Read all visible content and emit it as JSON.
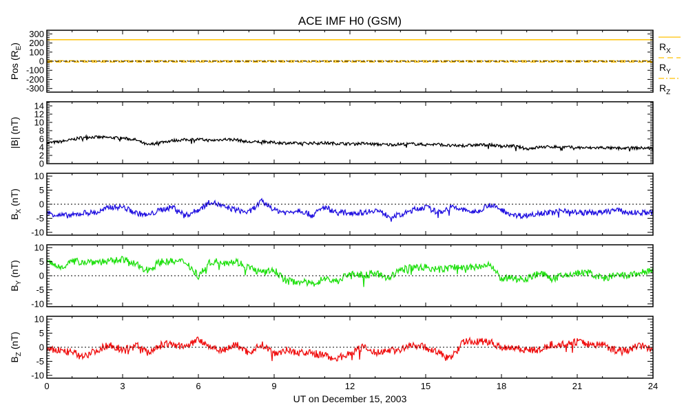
{
  "chart_data": {
    "type": "line",
    "title": "ACE IMF H0 (GSM)",
    "xlabel": "UT on December 15, 2003",
    "xlim": [
      0,
      24
    ],
    "xticks": [
      0,
      3,
      6,
      9,
      12,
      15,
      18,
      21,
      24
    ],
    "xtick_labels": [
      "0",
      "3",
      "6",
      "9",
      "12",
      "15",
      "18",
      "21",
      "24"
    ],
    "x": [
      0,
      0.5,
      1,
      1.5,
      2,
      2.5,
      3,
      3.5,
      4,
      4.5,
      5,
      5.5,
      6,
      6.5,
      7,
      7.5,
      8,
      8.5,
      9,
      9.5,
      10,
      10.5,
      11,
      11.5,
      12,
      12.5,
      13,
      13.5,
      14,
      14.5,
      15,
      15.5,
      16,
      16.5,
      17,
      17.5,
      18,
      18.5,
      19,
      19.5,
      20,
      20.5,
      21,
      21.5,
      22,
      22.5,
      23,
      23.5,
      24
    ],
    "panels": [
      {
        "ylabel": "Pos (R",
        "ylabel_sub": "E",
        "ylabel_end": ")",
        "ylim": [
          -340,
          340
        ],
        "yticks": [
          -300,
          -200,
          -100,
          0,
          100,
          200,
          300
        ],
        "ytick_labels": [
          "-300",
          "-200",
          "-100",
          "0",
          "100",
          "200",
          "300"
        ],
        "zero_line": true,
        "legend": [
          {
            "label": "R",
            "sub": "X",
            "style": "solid"
          },
          {
            "label": "R",
            "sub": "Y",
            "style": "dashed"
          },
          {
            "label": "R",
            "sub": "Z",
            "style": "dashdot"
          }
        ],
        "series": [
          {
            "name": "Rx",
            "color": "#ffc000",
            "style": "solid",
            "constant": 236
          },
          {
            "name": "Ry",
            "color": "#ffc000",
            "style": "dashed",
            "constant": -10
          },
          {
            "name": "Rz",
            "color": "#ffc000",
            "style": "dashdot",
            "constant": 5
          }
        ]
      },
      {
        "ylabel": "|B| (nT)",
        "ylabel_sub": "",
        "ylabel_end": "",
        "ylim": [
          0,
          15
        ],
        "yticks": [
          0,
          2,
          4,
          6,
          8,
          10,
          12,
          14
        ],
        "ytick_labels": [
          "0",
          "2",
          "4",
          "6",
          "8",
          "10",
          "12",
          "14"
        ],
        "zero_line": false,
        "series": [
          {
            "name": "|B|",
            "color": "#000000",
            "noise": 0.35,
            "values": [
              5,
              5.3,
              5.8,
              6.5,
              6.4,
              6.3,
              6.2,
              5.8,
              4.5,
              5.2,
              5.6,
              5.8,
              5.9,
              5.6,
              5.9,
              5.8,
              5.2,
              5.3,
              5.1,
              5.0,
              4.9,
              5.0,
              5.0,
              4.9,
              4.8,
              4.9,
              4.7,
              4.6,
              4.7,
              4.8,
              4.6,
              4.7,
              4.3,
              4.4,
              4.5,
              4.6,
              4.2,
              4.3,
              3.6,
              4.0,
              4.1,
              4.0,
              3.9,
              3.8,
              3.9,
              3.7,
              3.8,
              3.8,
              3.7
            ]
          }
        ]
      },
      {
        "ylabel": "B",
        "ylabel_sub": "X",
        "ylabel_end": " (nT)",
        "ylim": [
          -11,
          11
        ],
        "yticks": [
          -10,
          -5,
          0,
          5,
          10
        ],
        "ytick_labels": [
          "-10",
          "-5",
          "0",
          "5",
          "10"
        ],
        "zero_line": true,
        "series": [
          {
            "name": "Bx",
            "color": "#2010e0",
            "noise": 1.0,
            "values": [
              -3,
              -4,
              -4,
              -3,
              -3,
              -1,
              -1,
              -3,
              -4,
              -2,
              -1,
              -4,
              -2,
              1,
              -1,
              -2,
              -3,
              1,
              -2,
              -3,
              -2,
              -4,
              -1,
              -3,
              -3,
              -3,
              -2,
              -4,
              -4,
              -2,
              -1,
              -3,
              -1,
              -2,
              -3,
              0,
              -2,
              -4,
              -4,
              -3,
              -3,
              -2,
              -3,
              -3,
              -3,
              -2,
              -3,
              -3,
              -3
            ]
          }
        ]
      },
      {
        "ylabel": "B",
        "ylabel_sub": "Y",
        "ylabel_end": " (nT)",
        "ylim": [
          -11,
          11
        ],
        "yticks": [
          -10,
          -5,
          0,
          5,
          10
        ],
        "ytick_labels": [
          "-10",
          "-5",
          "0",
          "5",
          "10"
        ],
        "zero_line": true,
        "series": [
          {
            "name": "By",
            "color": "#20e010",
            "noise": 1.3,
            "values": [
              5,
              3,
              5,
              5,
              5,
              5,
              6,
              4,
              2,
              5,
              5,
              5,
              0,
              5,
              5,
              5,
              3,
              1,
              2,
              -2,
              -2,
              -3,
              -1,
              -2,
              1,
              0,
              1,
              -1,
              2,
              3,
              3,
              2,
              3,
              3,
              3,
              4,
              -1,
              -1,
              -1,
              1,
              -1,
              0,
              1,
              1,
              -1,
              0,
              0,
              1,
              2
            ]
          }
        ]
      },
      {
        "ylabel": "B",
        "ylabel_sub": "Z",
        "ylabel_end": " (nT)",
        "ylim": [
          -11,
          11
        ],
        "yticks": [
          -10,
          -5,
          0,
          5,
          10
        ],
        "ytick_labels": [
          "-10",
          "-5",
          "0",
          "5",
          "10"
        ],
        "zero_line": true,
        "series": [
          {
            "name": "Bz",
            "color": "#f01010",
            "noise": 1.3,
            "values": [
              -1,
              -1,
              -2,
              -3,
              -1,
              1,
              -1,
              1,
              -2,
              1,
              1,
              0,
              3,
              0,
              -1,
              1,
              -2,
              1,
              -2,
              -1,
              -2,
              -2,
              -3,
              -4,
              -2,
              0,
              -2,
              -1,
              -1,
              1,
              0,
              -2,
              -4,
              2,
              2,
              2,
              0,
              0,
              -1,
              -1,
              1,
              1,
              2,
              1,
              1,
              -1,
              -1,
              1,
              -1
            ]
          }
        ]
      }
    ]
  }
}
